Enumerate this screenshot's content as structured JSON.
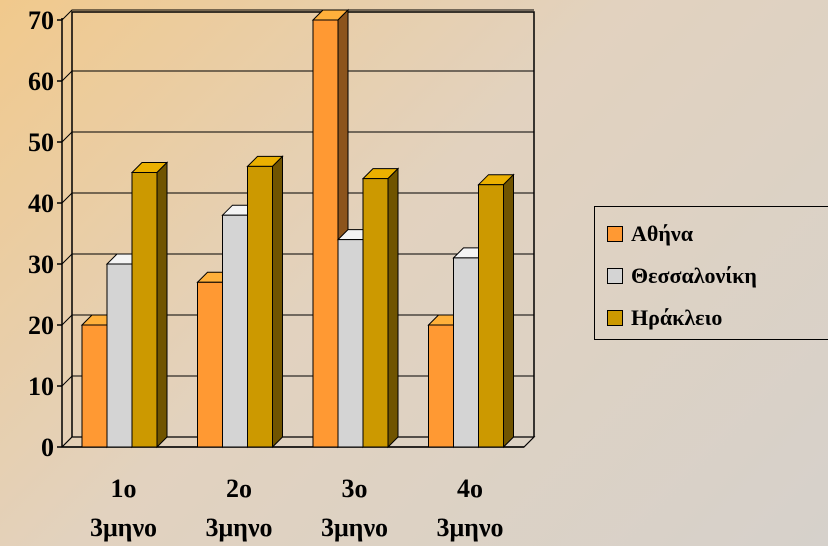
{
  "chart_data": {
    "type": "bar",
    "categories": [
      "1ο 3μηνο",
      "2ο 3μηνο",
      "3ο 3μηνο",
      "4ο 3μηνο"
    ],
    "category_lines": [
      [
        "1ο",
        "3μηνο"
      ],
      [
        "2ο",
        "3μηνο"
      ],
      [
        "3ο",
        "3μηνο"
      ],
      [
        "4ο",
        "3μηνο"
      ]
    ],
    "series": [
      {
        "name": "Αθήνα",
        "values": [
          20,
          27,
          70,
          20
        ],
        "color": "#ff9933"
      },
      {
        "name": "Θεσσαλονίκη",
        "values": [
          30,
          38,
          34,
          31
        ],
        "color": "#d4d4d4"
      },
      {
        "name": "Ηράκλειο",
        "values": [
          45,
          46,
          44,
          43
        ],
        "color": "#cc9900"
      }
    ],
    "yticks": [
      "0",
      "10",
      "20",
      "30",
      "40",
      "50",
      "60",
      "70"
    ],
    "ylim": [
      0,
      70
    ],
    "grid": true,
    "legend_position": "right",
    "title": "",
    "xlabel": "",
    "ylabel": ""
  }
}
